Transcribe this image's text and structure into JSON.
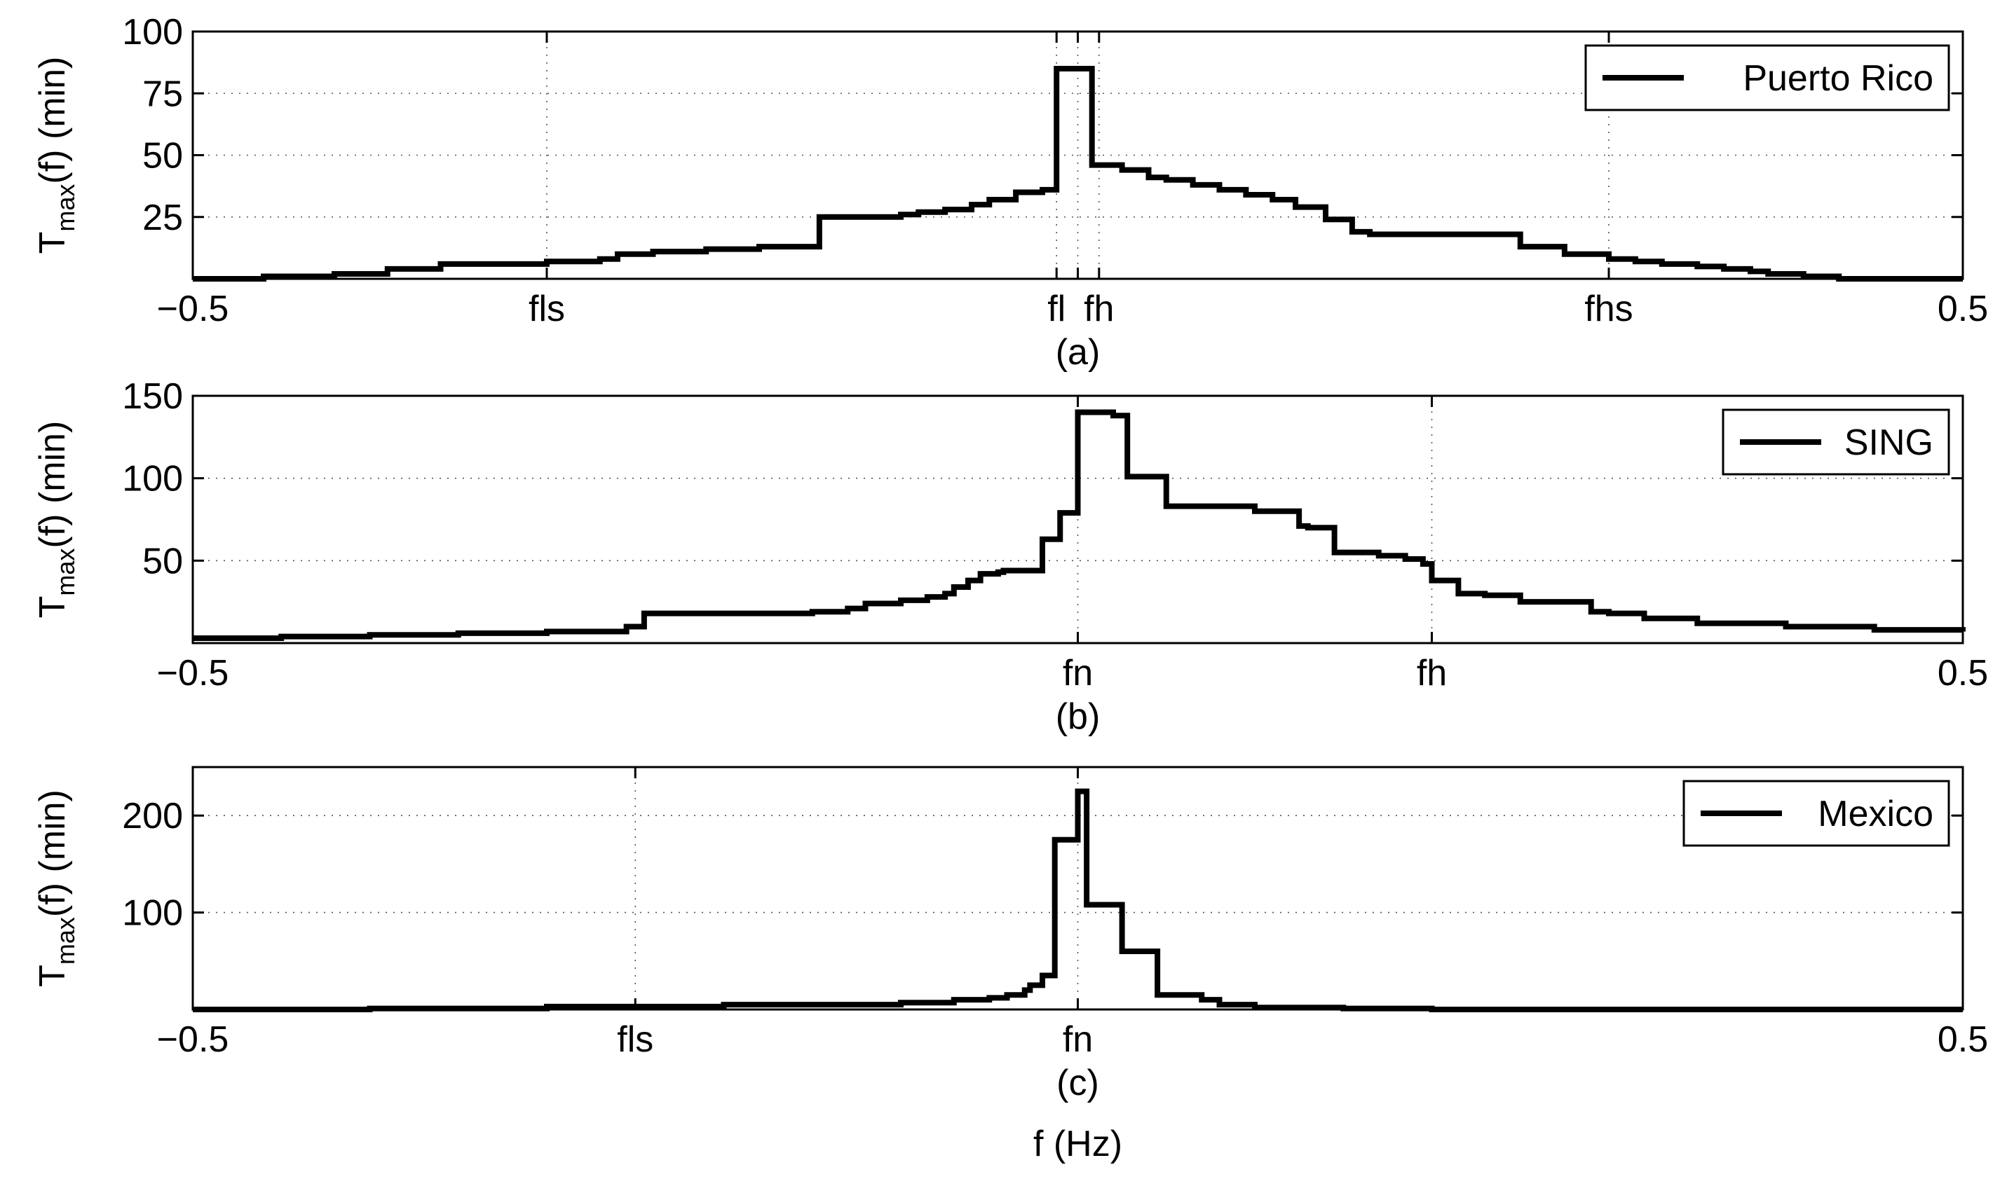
{
  "figure": {
    "xlabel": "f (Hz)"
  },
  "chart_data": [
    {
      "type": "line",
      "panel_label": "(a)",
      "ylabel": {
        "main": "T",
        "sub": "max",
        "rest": "(f) (min)"
      },
      "xlim": [
        -0.5,
        0.5
      ],
      "ylim": [
        0,
        100
      ],
      "yticks": [
        {
          "value": 25,
          "label": "25"
        },
        {
          "value": 50,
          "label": "50"
        },
        {
          "value": 75,
          "label": "75"
        },
        {
          "value": 100,
          "label": "100"
        }
      ],
      "xticks": [
        {
          "value": -0.5,
          "label": "−0.5"
        },
        {
          "value": -0.3,
          "label": "fls"
        },
        {
          "value": -0.012,
          "label": "fl"
        },
        {
          "value": 0.0,
          "label": ""
        },
        {
          "value": 0.012,
          "label": "fh"
        },
        {
          "value": 0.3,
          "label": "fhs"
        },
        {
          "value": 0.5,
          "label": "0.5"
        }
      ],
      "grid": true,
      "legend_position": "top-right",
      "series": [
        {
          "name": "Puerto Rico",
          "step": true,
          "x": [
            -0.5,
            -0.46,
            -0.42,
            -0.39,
            -0.36,
            -0.33,
            -0.3,
            -0.27,
            -0.26,
            -0.24,
            -0.21,
            -0.18,
            -0.15,
            -0.146,
            -0.12,
            -0.1,
            -0.09,
            -0.075,
            -0.06,
            -0.05,
            -0.035,
            -0.02,
            -0.012,
            0.003,
            0.008,
            0.013,
            0.025,
            0.04,
            0.05,
            0.065,
            0.08,
            0.095,
            0.11,
            0.123,
            0.13,
            0.14,
            0.155,
            0.165,
            0.215,
            0.22,
            0.25,
            0.25,
            0.275,
            0.3,
            0.315,
            0.33,
            0.35,
            0.365,
            0.38,
            0.39,
            0.41,
            0.43,
            0.46,
            0.5
          ],
          "y": [
            0,
            1,
            2,
            4,
            6,
            6,
            7,
            8,
            10,
            11,
            12,
            13,
            13,
            25,
            25,
            26,
            27,
            28,
            30,
            32,
            35,
            36,
            85,
            85,
            46,
            46,
            44,
            41,
            40,
            38,
            36,
            34,
            32,
            29,
            29,
            24,
            19,
            18,
            18,
            18,
            15,
            13,
            10,
            8,
            7,
            6,
            5,
            4,
            3,
            2,
            1,
            0,
            0,
            0
          ]
        }
      ]
    },
    {
      "type": "line",
      "panel_label": "(b)",
      "ylabel": {
        "main": "T",
        "sub": "max",
        "rest": "(f) (min)"
      },
      "xlim": [
        -0.5,
        0.5
      ],
      "ylim": [
        0,
        150
      ],
      "yticks": [
        {
          "value": 50,
          "label": "50"
        },
        {
          "value": 100,
          "label": "100"
        },
        {
          "value": 150,
          "label": "150"
        }
      ],
      "xticks": [
        {
          "value": -0.5,
          "label": "−0.5"
        },
        {
          "value": 0.0,
          "label": "fn"
        },
        {
          "value": 0.2,
          "label": "fh"
        },
        {
          "value": 0.5,
          "label": "0.5"
        }
      ],
      "grid": true,
      "legend_position": "top-right",
      "series": [
        {
          "name": "SING",
          "step": true,
          "x": [
            -0.5,
            -0.45,
            -0.4,
            -0.35,
            -0.3,
            -0.265,
            -0.255,
            -0.245,
            -0.2,
            -0.15,
            -0.13,
            -0.12,
            -0.1,
            -0.085,
            -0.075,
            -0.07,
            -0.062,
            -0.055,
            -0.045,
            -0.042,
            -0.02,
            -0.01,
            0.0,
            0.02,
            0.028,
            0.05,
            0.1,
            0.125,
            0.13,
            0.145,
            0.17,
            0.185,
            0.195,
            0.2,
            0.215,
            0.23,
            0.25,
            0.29,
            0.3,
            0.32,
            0.35,
            0.4,
            0.45,
            0.5
          ],
          "y": [
            3,
            4,
            5,
            6,
            7,
            7,
            10,
            18,
            18,
            19,
            21,
            24,
            26,
            28,
            30,
            34,
            38,
            42,
            43,
            44,
            63,
            79,
            140,
            138,
            101,
            83,
            80,
            71,
            70,
            55,
            53,
            51,
            48,
            38,
            30,
            29,
            25,
            19,
            18,
            15,
            12,
            10,
            8,
            7
          ]
        }
      ]
    },
    {
      "type": "line",
      "panel_label": "(c)",
      "ylabel": {
        "main": "T",
        "sub": "max",
        "rest": "(f) (min)"
      },
      "xlim": [
        -0.5,
        0.5
      ],
      "ylim": [
        0,
        250
      ],
      "yticks": [
        {
          "value": 100,
          "label": "100"
        },
        {
          "value": 200,
          "label": "200"
        }
      ],
      "xticks": [
        {
          "value": -0.5,
          "label": "−0.5"
        },
        {
          "value": -0.25,
          "label": "fls"
        },
        {
          "value": 0.0,
          "label": "fn"
        },
        {
          "value": 0.5,
          "label": "0.5"
        }
      ],
      "grid": true,
      "legend_position": "top-right",
      "series": [
        {
          "name": "Mexico",
          "step": true,
          "x": [
            -0.5,
            -0.4,
            -0.3,
            -0.2,
            -0.1,
            -0.07,
            -0.05,
            -0.04,
            -0.03,
            -0.027,
            -0.02,
            -0.013,
            -0.01,
            0.0,
            0.005,
            0.013,
            0.025,
            0.033,
            0.045,
            0.06,
            0.07,
            0.08,
            0.1,
            0.15,
            0.2,
            0.5
          ],
          "y": [
            0,
            1,
            3,
            5,
            7,
            10,
            12,
            15,
            20,
            25,
            35,
            175,
            175,
            225,
            108,
            108,
            60,
            60,
            15,
            15,
            10,
            5,
            2,
            1,
            0,
            0
          ]
        }
      ]
    }
  ]
}
